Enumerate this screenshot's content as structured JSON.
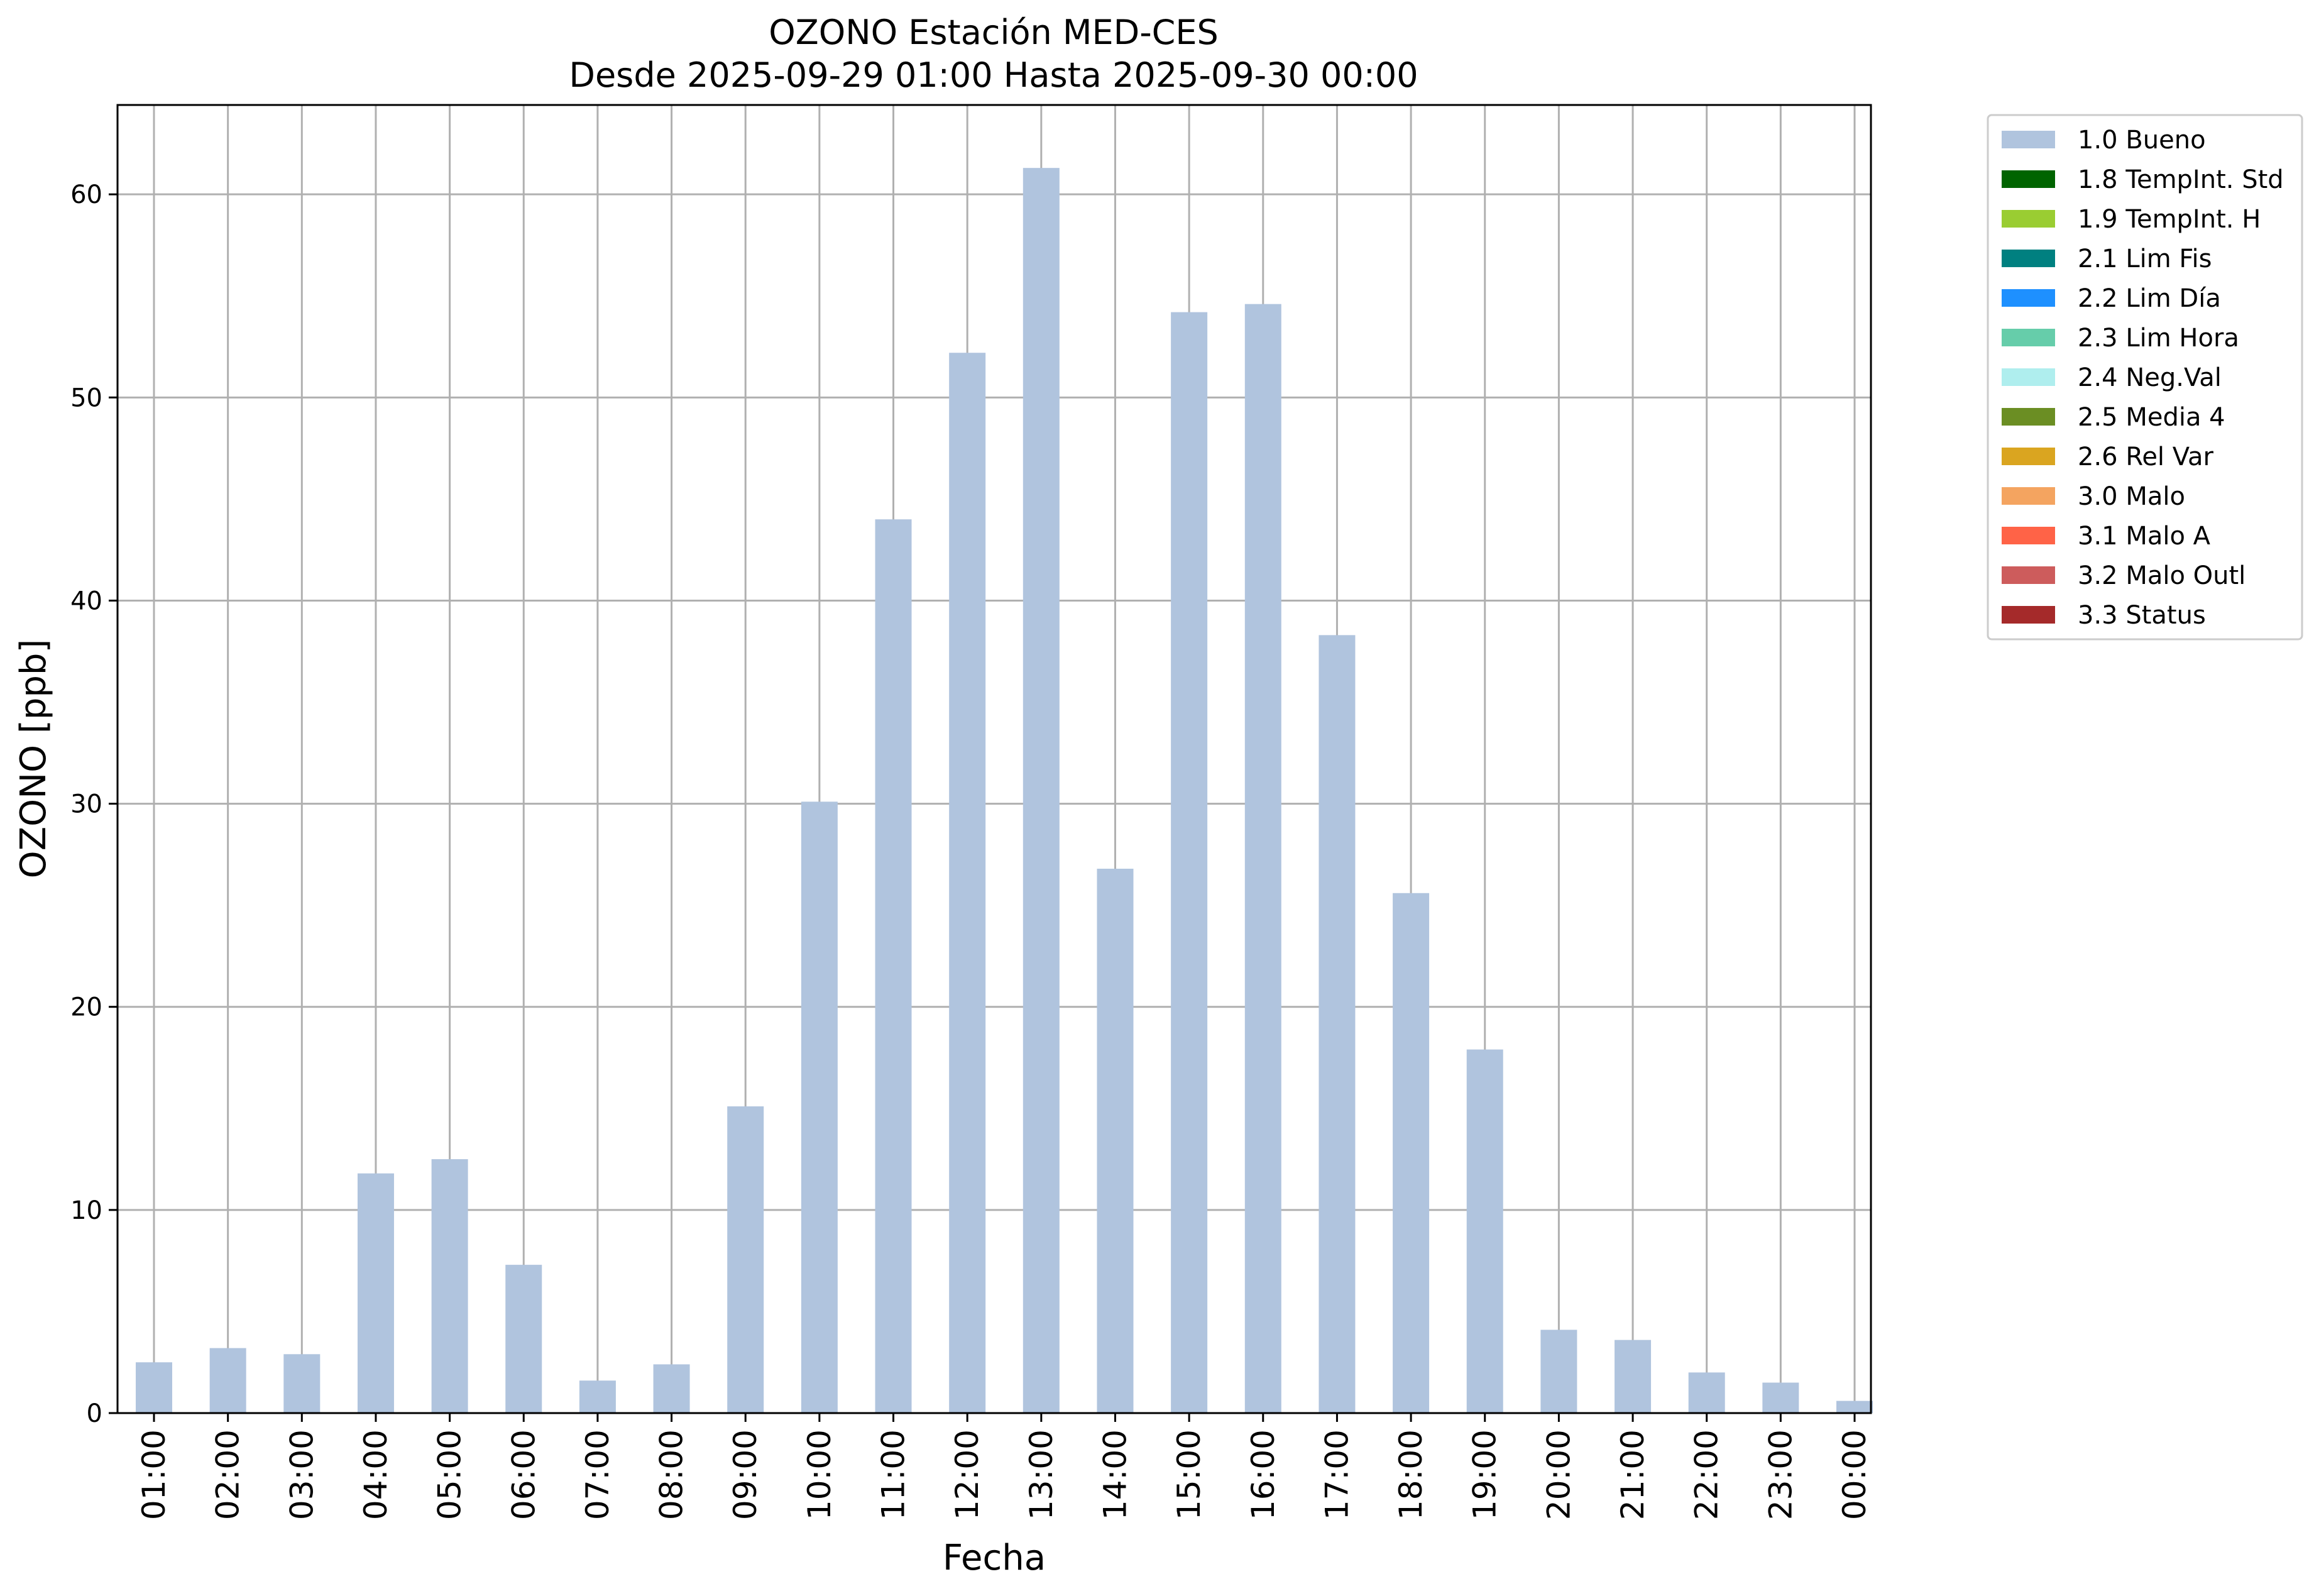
{
  "chart_data": {
    "type": "bar",
    "title": "OZONO Estación MED-CES",
    "subtitle": "Desde 2025-09-29 01:00 Hasta 2025-09-30 00:00",
    "xlabel": "Fecha",
    "ylabel": "OZONO [ppb]",
    "categories": [
      "01:00",
      "02:00",
      "03:00",
      "04:00",
      "05:00",
      "06:00",
      "07:00",
      "08:00",
      "09:00",
      "10:00",
      "11:00",
      "12:00",
      "13:00",
      "14:00",
      "15:00",
      "16:00",
      "17:00",
      "18:00",
      "19:00",
      "20:00",
      "21:00",
      "22:00",
      "23:00",
      "00:00"
    ],
    "values": [
      2.5,
      3.2,
      2.9,
      11.8,
      12.5,
      7.3,
      1.6,
      2.4,
      15.1,
      30.1,
      44.0,
      52.2,
      61.3,
      26.8,
      54.2,
      54.6,
      38.3,
      25.6,
      17.9,
      4.1,
      3.6,
      2.0,
      1.5,
      0.6
    ],
    "bar_color": "#b0c4de",
    "ylim": [
      0,
      64.4
    ],
    "yticks": [
      0,
      10,
      20,
      30,
      40,
      50,
      60
    ],
    "grid": true,
    "legend_position": "outside-right-top",
    "legend": [
      {
        "label": "1.0 Bueno",
        "color": "#b0c4de"
      },
      {
        "label": "1.8 TempInt. Std",
        "color": "#006400"
      },
      {
        "label": "1.9 TempInt. H",
        "color": "#9acd32"
      },
      {
        "label": "2.1 Lim Fis",
        "color": "#008080"
      },
      {
        "label": "2.2 Lim Día",
        "color": "#1e90ff"
      },
      {
        "label": "2.3 Lim Hora",
        "color": "#66cdaa"
      },
      {
        "label": "2.4 Neg.Val",
        "color": "#afeeee"
      },
      {
        "label": "2.5 Media 4",
        "color": "#6b8e23"
      },
      {
        "label": "2.6 Rel Var",
        "color": "#daa520"
      },
      {
        "label": "3.0 Malo",
        "color": "#f4a460"
      },
      {
        "label": "3.1 Malo A",
        "color": "#ff6347"
      },
      {
        "label": "3.2 Malo Outl",
        "color": "#cd5c5c"
      },
      {
        "label": "3.3 Status",
        "color": "#a52a2a"
      }
    ]
  }
}
